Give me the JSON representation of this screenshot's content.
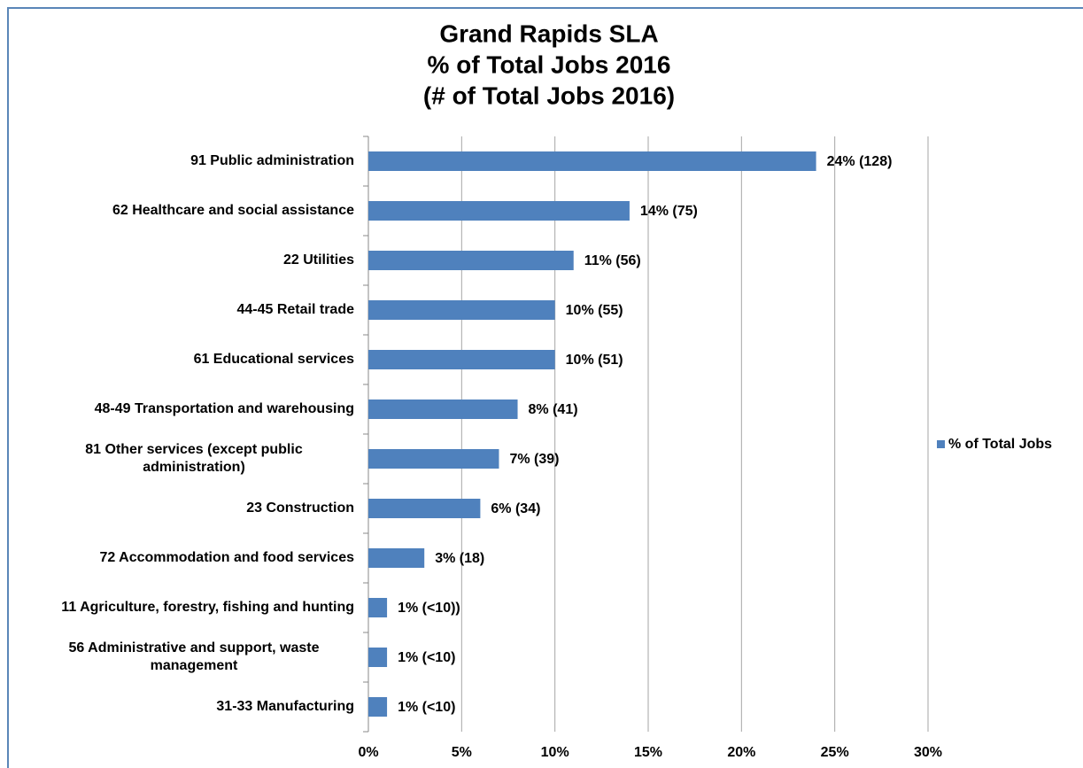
{
  "chart_data": {
    "type": "barh",
    "title": [
      "Grand Rapids SLA",
      "% of Total Jobs 2016",
      "(# of Total Jobs 2016)"
    ],
    "categories": [
      "91 Public administration",
      "62 Healthcare and social assistance",
      "22 Utilities",
      "44-45 Retail trade",
      "61 Educational services",
      "48-49 Transportation and warehousing",
      "81 Other services (except public administration)",
      "23 Construction",
      "72 Accommodation and food services",
      "11 Agriculture, forestry, fishing and hunting",
      "56 Administrative and support, waste management",
      "31-33 Manufacturing"
    ],
    "series": [
      {
        "name": "% of Total Jobs",
        "color": "#4f81bd",
        "values": [
          24,
          14,
          11,
          10,
          10,
          8,
          7,
          6,
          3,
          1,
          1,
          1
        ],
        "value_labels": [
          "24% (128)",
          "14% (75)",
          "11% (56)",
          "10% (55)",
          "10% (51)",
          "8% (41)",
          "7% (39)",
          "6% (34)",
          "3% (18)",
          "1% (<10))",
          "1% (<10)",
          "1% (<10)"
        ]
      }
    ],
    "xlim": [
      0,
      30
    ],
    "xticks": [
      {
        "value": 0,
        "label": "0%"
      },
      {
        "value": 5,
        "label": "5%"
      },
      {
        "value": 10,
        "label": "10%"
      },
      {
        "value": 15,
        "label": "15%"
      },
      {
        "value": 20,
        "label": "20%"
      },
      {
        "value": 25,
        "label": "25%"
      },
      {
        "value": 30,
        "label": "30%"
      }
    ],
    "grid": true,
    "legend": "right"
  }
}
